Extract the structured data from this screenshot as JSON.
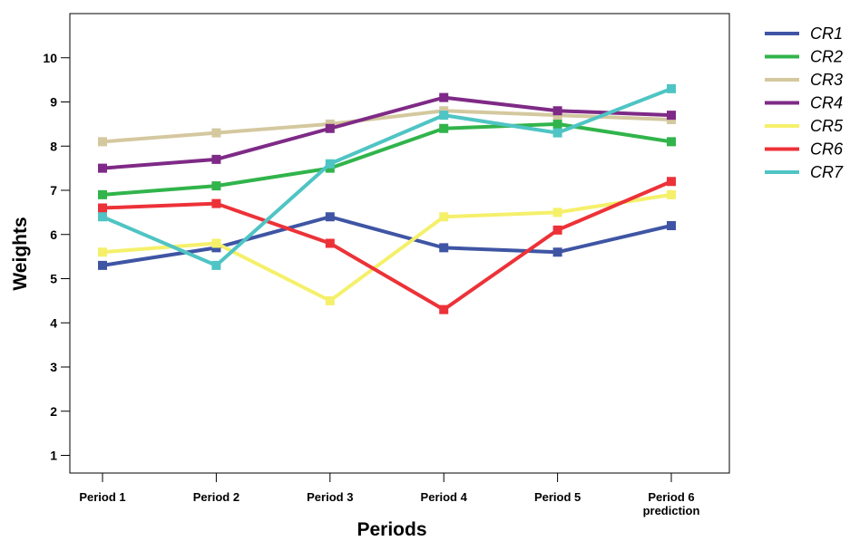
{
  "chart_data": {
    "type": "line",
    "title": "",
    "xlabel": "Periods",
    "ylabel": "Weights",
    "categories": [
      [
        "Period 1"
      ],
      [
        "Period 2"
      ],
      [
        "Period 3"
      ],
      [
        "Period 4"
      ],
      [
        "Period 5"
      ],
      [
        "Period 6",
        "prediction"
      ]
    ],
    "ylim": [
      0.6,
      11.0
    ],
    "yticks": [
      1,
      2,
      3,
      4,
      5,
      6,
      7,
      8,
      9,
      10
    ],
    "grid": false,
    "legend_position": "right",
    "series": [
      {
        "name": "CR1",
        "color": "#3f55a4",
        "values": [
          5.3,
          5.7,
          6.4,
          5.7,
          5.6,
          6.2
        ]
      },
      {
        "name": "CR2",
        "color": "#31b44b",
        "values": [
          6.9,
          7.1,
          7.5,
          8.4,
          8.5,
          8.1
        ]
      },
      {
        "name": "CR3",
        "color": "#d4c89f",
        "values": [
          8.1,
          8.3,
          8.5,
          8.8,
          8.7,
          8.6
        ]
      },
      {
        "name": "CR4",
        "color": "#7e2a86",
        "values": [
          7.5,
          7.7,
          8.4,
          9.1,
          8.8,
          8.7
        ]
      },
      {
        "name": "CR5",
        "color": "#f5f06a",
        "values": [
          5.6,
          5.8,
          4.5,
          6.4,
          6.5,
          6.9
        ]
      },
      {
        "name": "CR6",
        "color": "#ec3238",
        "values": [
          6.6,
          6.7,
          5.8,
          4.3,
          6.1,
          7.2
        ]
      },
      {
        "name": "CR7",
        "color": "#4fc4c4",
        "values": [
          6.4,
          5.3,
          7.6,
          8.7,
          8.3,
          9.3
        ]
      }
    ]
  }
}
